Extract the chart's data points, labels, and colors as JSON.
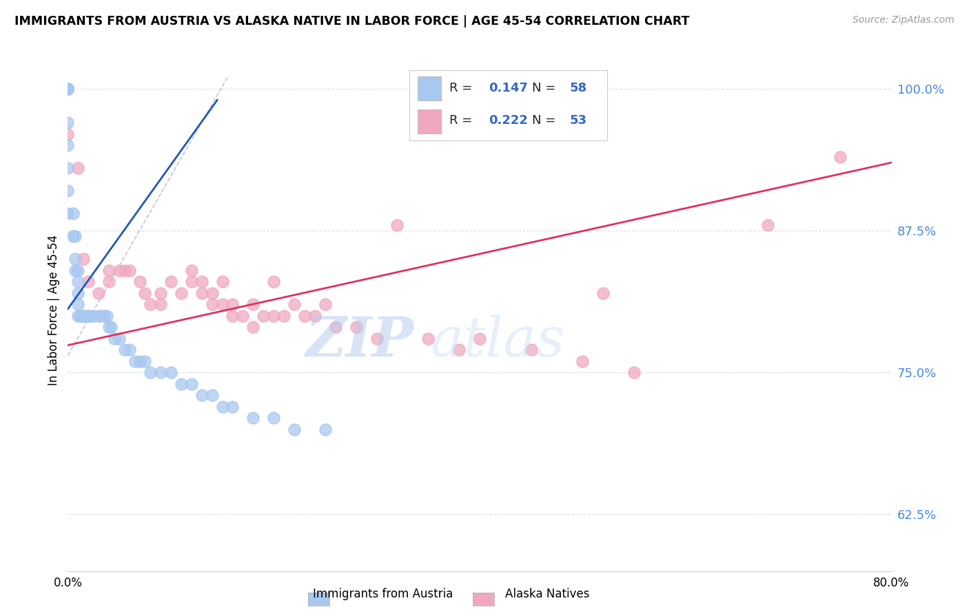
{
  "title": "IMMIGRANTS FROM AUSTRIA VS ALASKA NATIVE IN LABOR FORCE | AGE 45-54 CORRELATION CHART",
  "source": "Source: ZipAtlas.com",
  "ylabel": "In Labor Force | Age 45-54",
  "xmin": 0.0,
  "xmax": 0.8,
  "ymin": 0.575,
  "ymax": 1.035,
  "yticks": [
    0.625,
    0.75,
    0.875,
    1.0
  ],
  "ytick_labels": [
    "62.5%",
    "75.0%",
    "87.5%",
    "100.0%"
  ],
  "xticks": [
    0.0,
    0.1,
    0.2,
    0.3,
    0.4,
    0.5,
    0.6,
    0.7,
    0.8
  ],
  "xtick_labels": [
    "0.0%",
    "",
    "",
    "",
    "",
    "",
    "",
    "",
    "80.0%"
  ],
  "blue_color": "#a8c8f0",
  "pink_color": "#f0a8c0",
  "blue_line_color": "#2255bb",
  "pink_line_color": "#e03060",
  "label1": "Immigrants from Austria",
  "label2": "Alaska Natives",
  "blue_scatter_x": [
    0.0,
    0.0,
    0.0,
    0.0,
    0.0,
    0.0,
    0.0,
    0.0,
    0.0,
    0.0,
    0.0,
    0.0,
    0.005,
    0.005,
    0.007,
    0.007,
    0.007,
    0.01,
    0.01,
    0.01,
    0.01,
    0.01,
    0.012,
    0.013,
    0.015,
    0.015,
    0.015,
    0.018,
    0.02,
    0.02,
    0.022,
    0.025,
    0.03,
    0.032,
    0.035,
    0.038,
    0.04,
    0.042,
    0.045,
    0.05,
    0.055,
    0.06,
    0.065,
    0.07,
    0.075,
    0.08,
    0.09,
    0.1,
    0.11,
    0.12,
    0.13,
    0.14,
    0.15,
    0.16,
    0.18,
    0.2,
    0.22,
    0.25
  ],
  "blue_scatter_y": [
    1.0,
    1.0,
    1.0,
    1.0,
    1.0,
    1.0,
    1.0,
    0.97,
    0.95,
    0.93,
    0.91,
    0.89,
    0.89,
    0.87,
    0.87,
    0.85,
    0.84,
    0.84,
    0.83,
    0.82,
    0.81,
    0.8,
    0.8,
    0.8,
    0.8,
    0.8,
    0.8,
    0.8,
    0.8,
    0.8,
    0.8,
    0.8,
    0.8,
    0.8,
    0.8,
    0.8,
    0.79,
    0.79,
    0.78,
    0.78,
    0.77,
    0.77,
    0.76,
    0.76,
    0.76,
    0.75,
    0.75,
    0.75,
    0.74,
    0.74,
    0.73,
    0.73,
    0.72,
    0.72,
    0.71,
    0.71,
    0.7,
    0.7
  ],
  "pink_scatter_x": [
    0.0,
    0.0,
    0.0,
    0.01,
    0.015,
    0.02,
    0.03,
    0.04,
    0.04,
    0.05,
    0.055,
    0.06,
    0.07,
    0.075,
    0.08,
    0.09,
    0.09,
    0.1,
    0.11,
    0.12,
    0.12,
    0.13,
    0.13,
    0.14,
    0.14,
    0.15,
    0.15,
    0.16,
    0.16,
    0.17,
    0.18,
    0.18,
    0.19,
    0.2,
    0.2,
    0.21,
    0.22,
    0.23,
    0.24,
    0.25,
    0.26,
    0.28,
    0.3,
    0.32,
    0.35,
    0.38,
    0.4,
    0.45,
    0.5,
    0.52,
    0.55,
    0.68,
    0.75
  ],
  "pink_scatter_y": [
    1.0,
    1.0,
    0.96,
    0.93,
    0.85,
    0.83,
    0.82,
    0.84,
    0.83,
    0.84,
    0.84,
    0.84,
    0.83,
    0.82,
    0.81,
    0.82,
    0.81,
    0.83,
    0.82,
    0.84,
    0.83,
    0.83,
    0.82,
    0.82,
    0.81,
    0.83,
    0.81,
    0.81,
    0.8,
    0.8,
    0.81,
    0.79,
    0.8,
    0.83,
    0.8,
    0.8,
    0.81,
    0.8,
    0.8,
    0.81,
    0.79,
    0.79,
    0.78,
    0.88,
    0.78,
    0.77,
    0.78,
    0.77,
    0.76,
    0.82,
    0.75,
    0.88,
    0.94
  ],
  "watermark_zip": "ZIP",
  "watermark_atlas": "atlas",
  "blue_trendline_x": [
    0.0,
    0.145
  ],
  "blue_trendline_y": [
    0.806,
    0.99
  ],
  "pink_trendline_x": [
    0.0,
    0.8
  ],
  "pink_trendline_y": [
    0.774,
    0.935
  ],
  "dashed_line_x": [
    0.0,
    0.155
  ],
  "dashed_line_y": [
    0.765,
    1.01
  ]
}
